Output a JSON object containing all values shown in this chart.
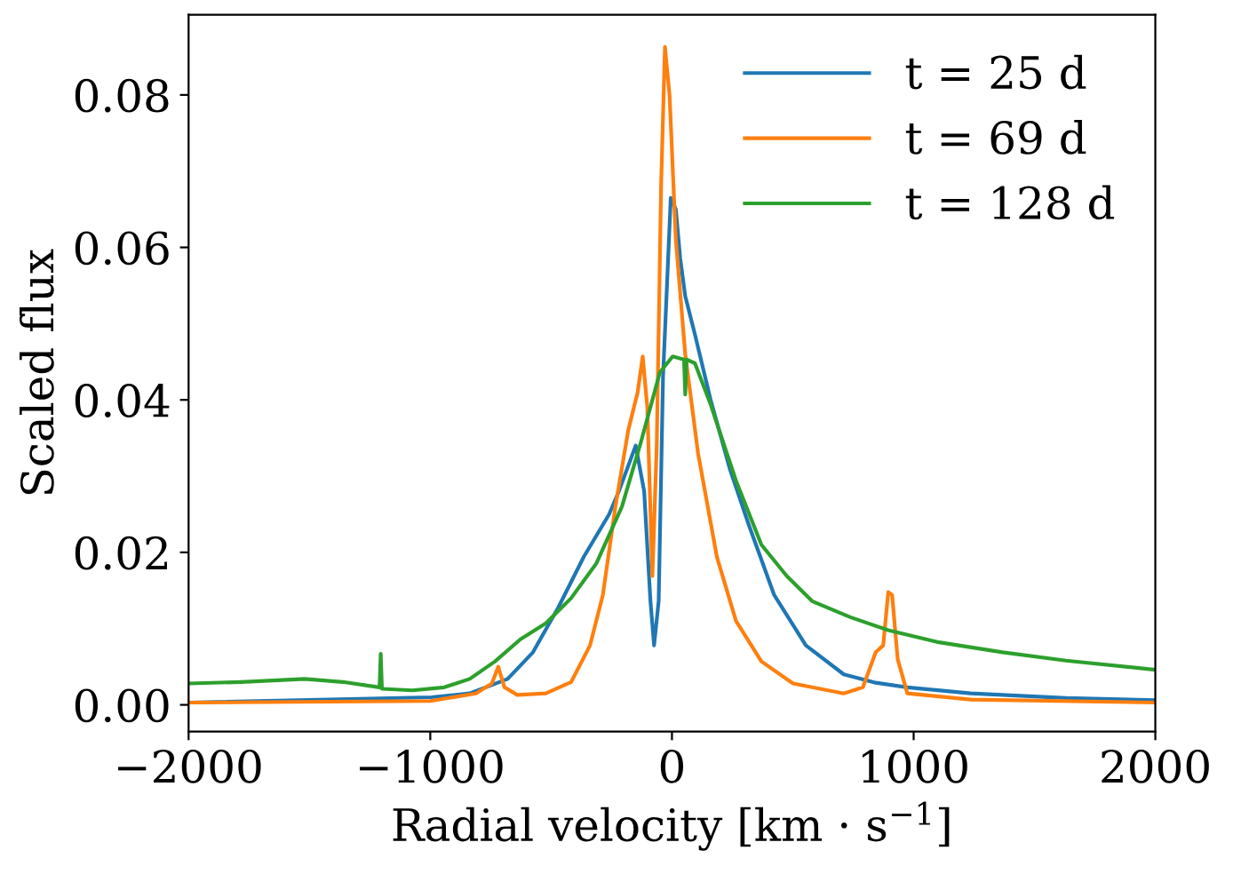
{
  "chart_data": {
    "type": "line",
    "xlabel": "Radial velocity [km · s$^{−1}$]",
    "ylabel": "Scaled flux",
    "xlim": [
      -2000,
      2000
    ],
    "ylim": [
      -0.0035,
      0.0905
    ],
    "xticks": [
      {
        "value": -2000,
        "label": "−2000"
      },
      {
        "value": -1000,
        "label": "−1000"
      },
      0,
      1000,
      2000
    ],
    "yticks": [
      {
        "value": 0,
        "label": "0.00"
      },
      {
        "value": 0.02,
        "label": "0.02"
      },
      {
        "value": 0.04,
        "label": "0.04"
      },
      {
        "value": 0.06,
        "label": "0.06"
      },
      {
        "value": 0.08,
        "label": "0.08"
      }
    ],
    "grid": false,
    "legend": "top right",
    "marker": "none",
    "line_style": "solid",
    "series": [
      {
        "name": "t = 25 d",
        "color": "#1f77b4",
        "x": [
          -2000,
          -995,
          -837,
          -680,
          -575,
          -470,
          -365,
          -260,
          -220,
          -150,
          -115,
          -89,
          -74,
          -55,
          -37,
          -5,
          16,
          34,
          55,
          95,
          160,
          239,
          318,
          423,
          554,
          711,
          843,
          974,
          1236,
          1630,
          2000
        ],
        "values": [
          0.0003,
          0.001,
          0.0015,
          0.0034,
          0.0069,
          0.0128,
          0.0194,
          0.025,
          0.028,
          0.034,
          0.028,
          0.0136,
          0.0078,
          0.0136,
          0.043,
          0.0665,
          0.065,
          0.0586,
          0.0536,
          0.0486,
          0.04,
          0.031,
          0.0236,
          0.0144,
          0.0078,
          0.004,
          0.0029,
          0.0023,
          0.0015,
          0.0009,
          0.0006
        ]
      },
      {
        "name": "t = 69 d",
        "color": "#ff7f0e",
        "x": [
          -2000,
          -1000,
          -811,
          -745,
          -719,
          -693,
          -640,
          -522,
          -417,
          -339,
          -286,
          -234,
          -181,
          -142,
          -121,
          -102,
          -81,
          -63,
          -45,
          -29,
          -10,
          16,
          55,
          108,
          186,
          265,
          370,
          501,
          711,
          790,
          843,
          874,
          895,
          911,
          934,
          974,
          1236,
          2000
        ],
        "values": [
          0.0003,
          0.0005,
          0.0015,
          0.0028,
          0.005,
          0.0023,
          0.0013,
          0.0015,
          0.003,
          0.0078,
          0.0144,
          0.026,
          0.036,
          0.041,
          0.0457,
          0.039,
          0.0169,
          0.034,
          0.068,
          0.0863,
          0.08,
          0.061,
          0.046,
          0.033,
          0.0194,
          0.011,
          0.0057,
          0.0028,
          0.0015,
          0.0023,
          0.0069,
          0.0078,
          0.0148,
          0.0144,
          0.006,
          0.0015,
          0.0007,
          0.0003
        ]
      },
      {
        "name": "t = 128 d",
        "color": "#2ca02c",
        "x": [
          -2000,
          -1782,
          -1520,
          -1362,
          -1210,
          -1205,
          -1200,
          -1074,
          -942,
          -837,
          -732,
          -627,
          -522,
          -417,
          -312,
          -207,
          -129,
          -50,
          3,
          50,
          55,
          60,
          95,
          160,
          265,
          370,
          475,
          580,
          738,
          895,
          1105,
          1368,
          1630,
          2000
        ],
        "values": [
          0.0028,
          0.003,
          0.0034,
          0.003,
          0.0023,
          0.0067,
          0.0021,
          0.0019,
          0.0023,
          0.0034,
          0.0057,
          0.0086,
          0.0107,
          0.014,
          0.0186,
          0.026,
          0.0344,
          0.0436,
          0.0457,
          0.0453,
          0.0407,
          0.0453,
          0.0448,
          0.0394,
          0.0294,
          0.021,
          0.0169,
          0.0136,
          0.0115,
          0.0098,
          0.0082,
          0.0069,
          0.0058,
          0.0046
        ]
      }
    ]
  }
}
